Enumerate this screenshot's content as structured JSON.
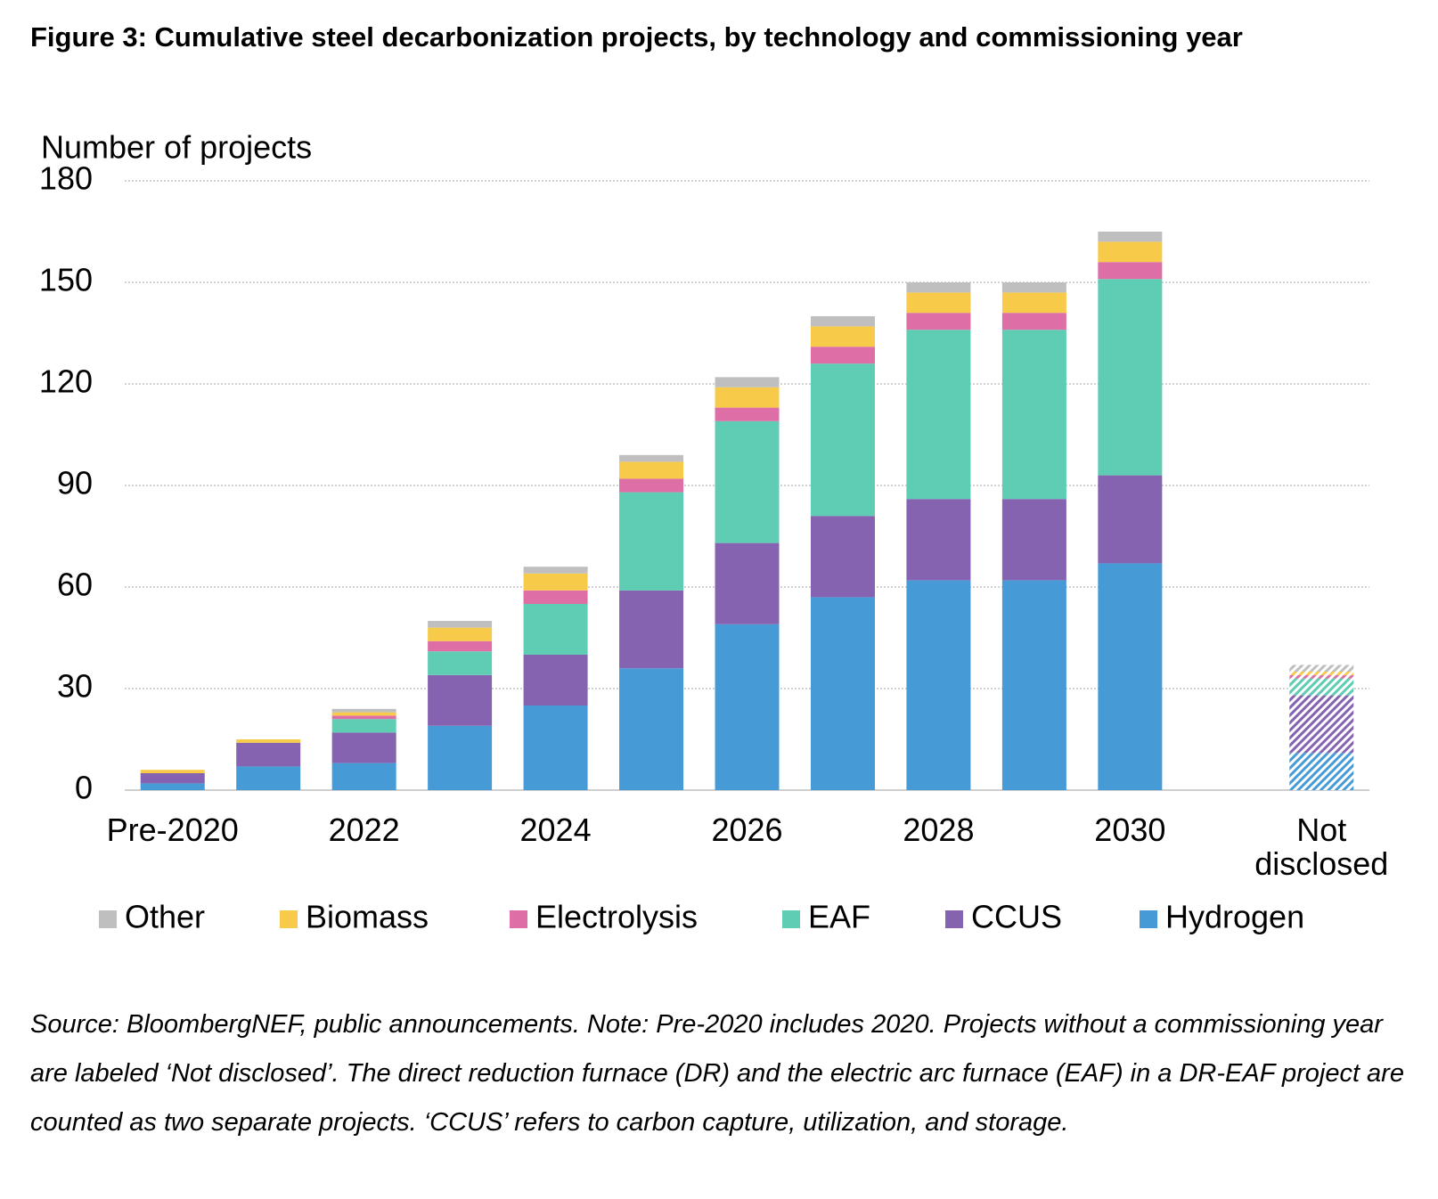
{
  "chart_data": {
    "type": "stacked_bar",
    "title": "Figure 3:  Cumulative steel decarbonization projects, by technology and commissioning year",
    "y_label": "Number of projects",
    "note": "Source: BloombergNEF, public announcements. Note: Pre-2020 includes 2020. Projects without a commissioning year are labeled ‘Not disclosed’. The direct reduction furnace (DR) and the electric arc furnace (EAF) in a DR-EAF project are counted as two separate projects. ‘CCUS’ refers to carbon capture, utilization, and storage.",
    "categories": [
      "Pre-2020",
      null,
      "2022",
      null,
      "2024",
      null,
      "2026",
      null,
      "2028",
      null,
      "2030",
      null,
      "Not disclosed"
    ],
    "hatched_categories": [
      "Not disclosed"
    ],
    "series": [
      {
        "name": "Other",
        "color": "#bfbfbf",
        "values": [
          0,
          0,
          1,
          2,
          2,
          2,
          3,
          3,
          3,
          3,
          3,
          null,
          2
        ]
      },
      {
        "name": "Biomass",
        "color": "#f7ca4a",
        "values": [
          1,
          1,
          1,
          4,
          5,
          5,
          6,
          6,
          6,
          6,
          6,
          null,
          1
        ]
      },
      {
        "name": "Electrolysis",
        "color": "#dd6ea6",
        "values": [
          0,
          0,
          1,
          3,
          4,
          4,
          4,
          5,
          5,
          5,
          5,
          null,
          1
        ]
      },
      {
        "name": "EAF",
        "color": "#5fcdb3",
        "values": [
          0,
          0,
          4,
          7,
          15,
          29,
          36,
          45,
          50,
          50,
          58,
          null,
          5
        ]
      },
      {
        "name": "CCUS",
        "color": "#8563b0",
        "values": [
          3,
          7,
          9,
          15,
          15,
          23,
          24,
          24,
          24,
          24,
          26,
          null,
          17
        ]
      },
      {
        "name": "Hydrogen",
        "color": "#469bd7",
        "values": [
          2,
          7,
          8,
          19,
          25,
          36,
          49,
          57,
          62,
          62,
          67,
          null,
          11
        ]
      }
    ],
    "ylim": [
      0,
      180
    ],
    "yticks": [
      0,
      30,
      60,
      90,
      120,
      150,
      180
    ],
    "grid": true,
    "legend": "bottom"
  }
}
